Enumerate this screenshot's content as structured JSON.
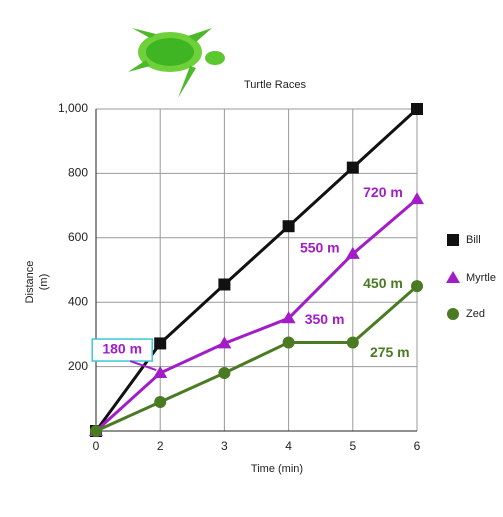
{
  "chart_data": {
    "type": "line",
    "title": "Turtle Races",
    "x_label": "Time (min)",
    "y_label": [
      "Distance",
      "(m)"
    ],
    "categories": [
      "0",
      "2",
      "3",
      "4",
      "5",
      "6"
    ],
    "ylim": [
      0,
      1000
    ],
    "yticks": [
      200,
      400,
      600,
      800,
      {
        "value": 1000,
        "label": "1,000"
      }
    ],
    "grid": true,
    "legend": "right",
    "series": [
      {
        "name": "Bill",
        "color": "#111111",
        "marker": "square",
        "values": [
          0,
          272,
          455,
          636,
          818,
          1000
        ]
      },
      {
        "name": "Myrtle",
        "color": "#a21cc8",
        "marker": "triangle",
        "values": [
          0,
          180,
          272,
          350,
          550,
          720
        ],
        "value_labels": [
          null,
          "180 m",
          null,
          "350 m",
          "550 m",
          "720 m"
        ]
      },
      {
        "name": "Zed",
        "color": "#4a7a22",
        "marker": "circle",
        "values": [
          0,
          90,
          180,
          275,
          275,
          450
        ],
        "value_labels": [
          null,
          null,
          null,
          null,
          "275 m",
          "450 m"
        ]
      }
    ]
  }
}
